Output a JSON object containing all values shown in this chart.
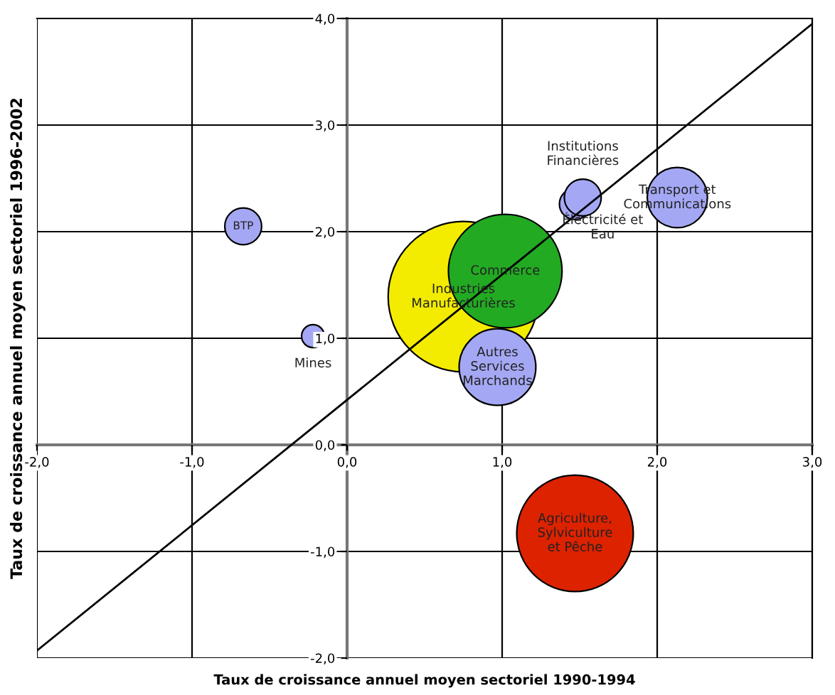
{
  "chart_data": {
    "type": "bubble",
    "xlabel": "Taux de croissance annuel moyen sectoriel 1990-1994",
    "ylabel": "Taux de croissance annuel moyen sectoriel 1996-2002",
    "xlim": [
      -2,
      3
    ],
    "ylim": [
      -2,
      4
    ],
    "xticks": [
      {
        "value": -2,
        "label": "-2,0"
      },
      {
        "value": -1,
        "label": "-1,0"
      },
      {
        "value": 0,
        "label": "0,0"
      },
      {
        "value": 1,
        "label": "1,0"
      },
      {
        "value": 2,
        "label": "2,0"
      },
      {
        "value": 3,
        "label": "3,0"
      }
    ],
    "yticks": [
      {
        "value": -2,
        "label": "-2,0"
      },
      {
        "value": -1,
        "label": "-1,0"
      },
      {
        "value": 0,
        "label": "0,0"
      },
      {
        "value": 1,
        "label": "1,0"
      },
      {
        "value": 2,
        "label": "2,0"
      },
      {
        "value": 3,
        "label": "3,0"
      },
      {
        "value": 4,
        "label": "4,0"
      }
    ],
    "grid": true,
    "series": [
      {
        "name": "BTP",
        "color": "#a4a8f4",
        "x": [
          -0.67
        ],
        "values": [
          2.05
        ],
        "sizes": [
          0.06
        ]
      },
      {
        "name": "Mines",
        "color": "#a4a8f4",
        "x": [
          -0.22
        ],
        "values": [
          1.02
        ],
        "sizes": [
          0.023
        ]
      },
      {
        "name": "Industries Manufacturières",
        "color": "#f4ec00",
        "x": [
          0.75
        ],
        "values": [
          1.39
        ],
        "sizes": [
          1
        ]
      },
      {
        "name": "Commerce",
        "color": "#22aa22",
        "x": [
          1.02
        ],
        "values": [
          1.63
        ],
        "sizes": [
          0.57
        ]
      },
      {
        "name": "Autres Services Marchands",
        "color": "#a4a8f4",
        "x": [
          0.97
        ],
        "values": [
          0.73
        ],
        "sizes": [
          0.26
        ]
      },
      {
        "name": "Électricité et Eau",
        "color": "#a4a8f4",
        "x": [
          1.47
        ],
        "values": [
          2.26
        ],
        "sizes": [
          0.043
        ]
      },
      {
        "name": "Institutions Financières",
        "color": "#a4a8f4",
        "x": [
          1.52
        ],
        "values": [
          2.32
        ],
        "sizes": [
          0.06
        ]
      },
      {
        "name": "Transport et Communications",
        "color": "#a4a8f4",
        "x": [
          2.13
        ],
        "values": [
          2.32
        ],
        "sizes": [
          0.16
        ]
      },
      {
        "name": "Agriculture, Sylviculture et Pêche",
        "color": "#dd2200",
        "x": [
          1.47
        ],
        "values": [
          -0.83
        ],
        "sizes": [
          0.6
        ]
      },
      {
        "type": "line",
        "color": "#000000",
        "x": [
          -2,
          3
        ],
        "values": [
          -1.93,
          3.95
        ]
      }
    ]
  }
}
